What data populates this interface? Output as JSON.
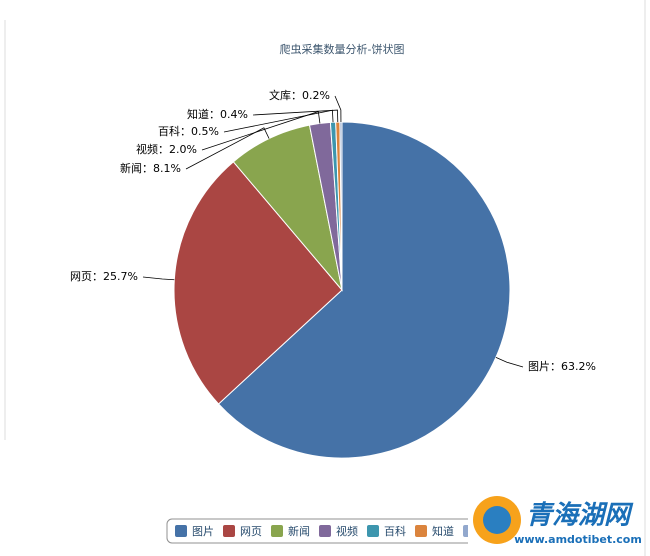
{
  "chart_data": {
    "type": "pie",
    "title": "爬虫采集数量分析-饼状图",
    "categories": [
      "图片",
      "网页",
      "新闻",
      "视频",
      "百科",
      "知道",
      "文库"
    ],
    "values": [
      63.2,
      25.7,
      8.1,
      2.0,
      0.5,
      0.4,
      0.2
    ],
    "value_labels": [
      "图片：63.2%",
      "网页：25.7%",
      "新闻：8.1%",
      "视频：2.0%",
      "百科：0.5%",
      "知道：0.4%",
      "文库：0.2%"
    ],
    "colors": [
      "#4572a7",
      "#aa4643",
      "#89a54e",
      "#80699b",
      "#3d96ae",
      "#db843d",
      "#92a8cd"
    ],
    "legend": "bottom"
  },
  "watermark": {
    "name": "青海湖网",
    "url": "www.amdotibet.com"
  }
}
